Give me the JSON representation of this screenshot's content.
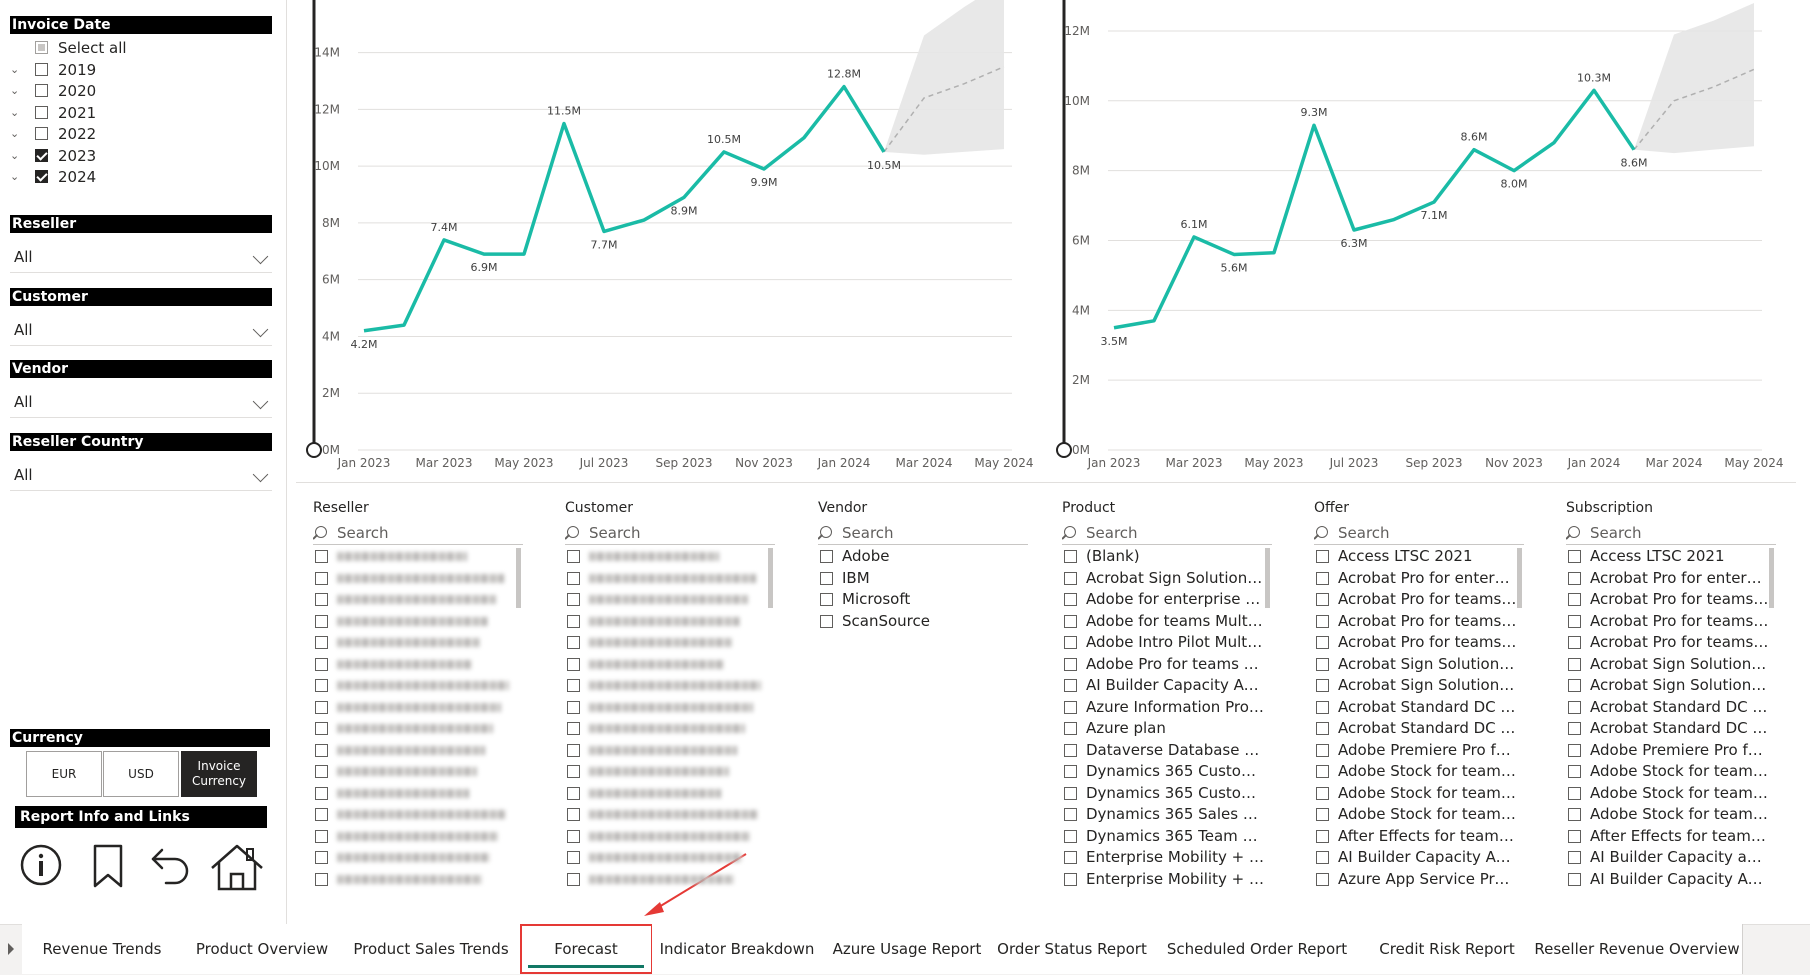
{
  "filters": {
    "invoice_date": {
      "title": "Invoice Date",
      "items": [
        {
          "label": "Select all",
          "state": "partial",
          "expand": false
        },
        {
          "label": "2019",
          "state": "unchecked",
          "expand": true
        },
        {
          "label": "2020",
          "state": "unchecked",
          "expand": true
        },
        {
          "label": "2021",
          "state": "unchecked",
          "expand": true
        },
        {
          "label": "2022",
          "state": "unchecked",
          "expand": true
        },
        {
          "label": "2023",
          "state": "checked",
          "expand": true
        },
        {
          "label": "2024",
          "state": "checked",
          "expand": true
        }
      ]
    },
    "reseller": {
      "title": "Reseller",
      "value": "All"
    },
    "customer": {
      "title": "Customer",
      "value": "All"
    },
    "vendor": {
      "title": "Vendor",
      "value": "All"
    },
    "reseller_country": {
      "title": "Reseller Country",
      "value": "All"
    },
    "currency": {
      "title": "Currency",
      "options": [
        "EUR",
        "USD",
        "Invoice Currency"
      ],
      "selected": "Invoice Currency"
    },
    "report_info": {
      "title": "Report Info and Links"
    }
  },
  "icons": [
    "info-icon",
    "bookmark-icon",
    "back-arrow-icon",
    "home-icon"
  ],
  "chart_data": [
    {
      "type": "line",
      "x": [
        "Jan 2023",
        "Feb 2023",
        "Mar 2023",
        "Apr 2023",
        "May 2023",
        "Jun 2023",
        "Jul 2023",
        "Aug 2023",
        "Sep 2023",
        "Oct 2023",
        "Nov 2023",
        "Dec 2023",
        "Jan 2024",
        "Feb 2024"
      ],
      "values": [
        4.2,
        4.4,
        7.4,
        6.9,
        6.9,
        11.5,
        7.7,
        8.1,
        8.9,
        10.5,
        9.9,
        11.0,
        12.8,
        10.5
      ],
      "data_labels": [
        {
          "index": 0,
          "text": "4.2M"
        },
        {
          "index": 2,
          "text": "7.4M"
        },
        {
          "index": 3,
          "text": "6.9M"
        },
        {
          "index": 5,
          "text": "11.5M"
        },
        {
          "index": 6,
          "text": "7.7M"
        },
        {
          "index": 8,
          "text": "8.9M"
        },
        {
          "index": 9,
          "text": "10.5M"
        },
        {
          "index": 10,
          "text": "9.9M"
        },
        {
          "index": 12,
          "text": "12.8M"
        },
        {
          "index": 13,
          "text": "10.5M"
        }
      ],
      "forecast": {
        "x_index": [
          13,
          14,
          15,
          16
        ],
        "values": [
          10.5,
          12.4,
          12.9,
          13.5
        ],
        "upper": [
          10.5,
          14.6,
          15.6,
          16.5
        ],
        "lower": [
          10.5,
          10.4,
          10.5,
          10.6
        ]
      },
      "y_ticks": [
        "0M",
        "2M",
        "4M",
        "6M",
        "8M",
        "10M",
        "12M",
        "14M"
      ],
      "x_ticks": [
        "Jan 2023",
        "Mar 2023",
        "May 2023",
        "Jul 2023",
        "Sep 2023",
        "Nov 2023",
        "Jan 2024",
        "Mar 2024",
        "May 2024"
      ],
      "ylim": [
        0,
        15.5
      ],
      "color": "#1ABBA6"
    },
    {
      "type": "line",
      "x": [
        "Jan 2023",
        "Feb 2023",
        "Mar 2023",
        "Apr 2023",
        "May 2023",
        "Jun 2023",
        "Jul 2023",
        "Aug 2023",
        "Sep 2023",
        "Oct 2023",
        "Nov 2023",
        "Dec 2023",
        "Jan 2024",
        "Feb 2024"
      ],
      "values": [
        3.5,
        3.7,
        6.1,
        5.6,
        5.65,
        9.3,
        6.3,
        6.6,
        7.1,
        8.6,
        8.0,
        8.8,
        10.3,
        8.6
      ],
      "data_labels": [
        {
          "index": 0,
          "text": "3.5M"
        },
        {
          "index": 2,
          "text": "6.1M"
        },
        {
          "index": 3,
          "text": "5.6M"
        },
        {
          "index": 5,
          "text": "9.3M"
        },
        {
          "index": 6,
          "text": "6.3M"
        },
        {
          "index": 8,
          "text": "7.1M"
        },
        {
          "index": 9,
          "text": "8.6M"
        },
        {
          "index": 10,
          "text": "8.0M"
        },
        {
          "index": 12,
          "text": "10.3M"
        },
        {
          "index": 13,
          "text": "8.6M"
        }
      ],
      "forecast": {
        "x_index": [
          13,
          14,
          15,
          16
        ],
        "values": [
          8.6,
          10.0,
          10.4,
          10.9
        ],
        "upper": [
          8.6,
          11.9,
          12.3,
          12.8
        ],
        "lower": [
          8.6,
          8.5,
          8.6,
          8.7
        ]
      },
      "y_ticks": [
        "0M",
        "2M",
        "4M",
        "6M",
        "8M",
        "10M",
        "12M"
      ],
      "x_ticks": [
        "Jan 2023",
        "Mar 2023",
        "May 2023",
        "Jul 2023",
        "Sep 2023",
        "Nov 2023",
        "Jan 2024",
        "Mar 2024",
        "May 2024"
      ],
      "ylim": [
        0,
        12.6
      ],
      "color": "#1ABBA6"
    }
  ],
  "lists": [
    {
      "title": "Reseller",
      "search": "Search",
      "blurred": true,
      "count": 16
    },
    {
      "title": "Customer",
      "search": "Search",
      "blurred": true,
      "count": 16
    },
    {
      "title": "Vendor",
      "search": "Search",
      "blurred": false,
      "items": [
        "Adobe",
        "IBM",
        "Microsoft",
        "ScanSource"
      ]
    },
    {
      "title": "Product",
      "search": "Search",
      "blurred": false,
      "items": [
        "(Blank)",
        "Acrobat Sign Solutions fo...",
        "Adobe for enterprise Mul...",
        "Adobe for teams Multi La...",
        "Adobe Intro Pilot Multi L...",
        "Adobe Pro for teams Mul...",
        "AI Builder Capacity Add-...",
        "Azure Information Protec...",
        "Azure plan",
        "Dataverse Database Capa...",
        "Dynamics 365 Customer ...",
        "Dynamics 365 Customer ...",
        "Dynamics 365 Sales Profe...",
        "Dynamics 365 Team Mem...",
        "Enterprise Mobility + Sec...",
        "Enterprise Mobility + Sec..."
      ]
    },
    {
      "title": "Offer",
      "search": "Search",
      "blurred": false,
      "items": [
        "Access LTSC 2021",
        "Acrobat Pro for enterpris...",
        "Acrobat Pro for teams ML...",
        "Acrobat Pro for teams ML...",
        "Acrobat Pro for teams ML...",
        "Acrobat Sign Solutions fo...",
        "Acrobat Sign Solutions fo...",
        "Acrobat Standard DC for ...",
        "Acrobat Standard DC for ...",
        "Adobe Premiere Pro for t...",
        "Adobe Stock for teams (L...",
        "Adobe Stock for teams (O...",
        "Adobe Stock for teams (S...",
        "After Effects for teams M...",
        "AI Builder Capacity Add-o...",
        "Azure App Service Premi..."
      ]
    },
    {
      "title": "Subscription",
      "search": "Search",
      "blurred": false,
      "items": [
        "Access LTSC 2021",
        "Acrobat Pro for enterpris...",
        "Acrobat Pro for teams ML...",
        "Acrobat Pro for teams ML...",
        "Acrobat Pro for teams ML...",
        "Acrobat Sign Solutions fo...",
        "Acrobat Sign Solutions fo...",
        "Acrobat Standard DC for ...",
        "Acrobat Standard DC for ...",
        "Adobe Premiere Pro for t...",
        "Adobe Stock for teams (L...",
        "Adobe Stock for teams (O...",
        "Adobe Stock for teams (S...",
        "After Effects for teams M...",
        "AI Builder Capacity add-o...",
        "AI Builder Capacity Add-o..."
      ]
    }
  ],
  "tabs": {
    "items": [
      "Revenue Trends",
      "Product Overview",
      "Product Sales Trends",
      "Forecast",
      "Indicator Breakdown",
      "Azure Usage Report",
      "Order Status Report",
      "Scheduled Order Report",
      "Credit Risk Report",
      "Reseller Revenue Overview"
    ],
    "active": "Forecast",
    "highlight_color": "#E53935"
  }
}
